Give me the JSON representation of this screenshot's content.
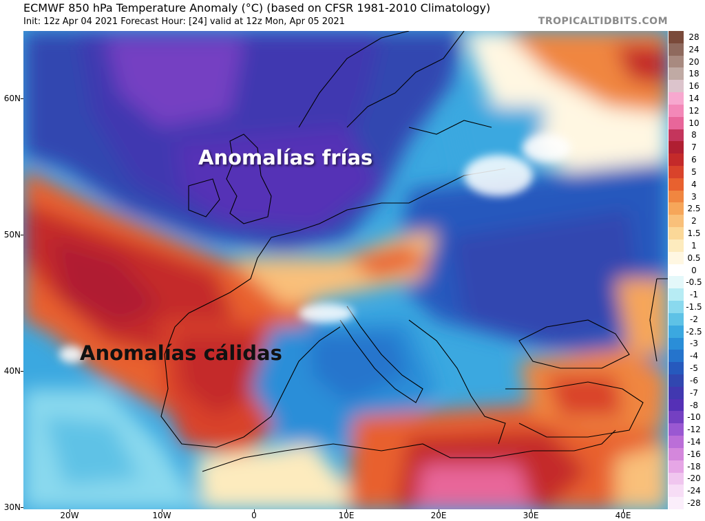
{
  "header": {
    "title": "ECMWF 850 hPa Temperature Anomaly (°C) (based on CFSR 1981-2010 Climatology)",
    "subtitle": "Init: 12z Apr 04 2021   Forecast Hour: [24]   valid at 12z Mon, Apr 05 2021",
    "brand": "TROPICALTIDBITS.COM"
  },
  "map": {
    "annotations": {
      "cold": "Anomalías frías",
      "warm": "Anomalías cálidas"
    },
    "lat_labels": [
      "60N",
      "50N",
      "40N",
      "30N"
    ],
    "lon_labels": [
      "20W",
      "10W",
      "0",
      "10E",
      "20E",
      "30E",
      "40E"
    ]
  },
  "colorbar": {
    "levels": [
      {
        "label": "28",
        "color": "#7a4a3a"
      },
      {
        "label": "24",
        "color": "#8f6a5e"
      },
      {
        "label": "20",
        "color": "#a88a80"
      },
      {
        "label": "18",
        "color": "#c0aaa4"
      },
      {
        "label": "16",
        "color": "#dcc4cc"
      },
      {
        "label": "14",
        "color": "#f7a8cf"
      },
      {
        "label": "12",
        "color": "#f388b8"
      },
      {
        "label": "10",
        "color": "#e8669a"
      },
      {
        "label": "8",
        "color": "#c4355c"
      },
      {
        "label": "7",
        "color": "#b01f32"
      },
      {
        "label": "6",
        "color": "#c42a2a"
      },
      {
        "label": "5",
        "color": "#d9432b"
      },
      {
        "label": "4",
        "color": "#e8612f"
      },
      {
        "label": "3",
        "color": "#f08640"
      },
      {
        "label": "2.5",
        "color": "#f6a65a"
      },
      {
        "label": "2",
        "color": "#f9c07a"
      },
      {
        "label": "1.5",
        "color": "#fbd898"
      },
      {
        "label": "1",
        "color": "#fdebbe"
      },
      {
        "label": "0.5",
        "color": "#fff7e2"
      },
      {
        "label": "0",
        "color": "#ffffff"
      },
      {
        "label": "-0.5",
        "color": "#e4f8fa"
      },
      {
        "label": "-1",
        "color": "#b7ecf4"
      },
      {
        "label": "-1.5",
        "color": "#8ad9ee"
      },
      {
        "label": "-2",
        "color": "#5ec2e6"
      },
      {
        "label": "-2.5",
        "color": "#3ba8e0"
      },
      {
        "label": "-3",
        "color": "#2a8ed8"
      },
      {
        "label": "-4",
        "color": "#2574cc"
      },
      {
        "label": "-5",
        "color": "#2659bd"
      },
      {
        "label": "-6",
        "color": "#3147b0"
      },
      {
        "label": "-7",
        "color": "#4138b0"
      },
      {
        "label": "-8",
        "color": "#5530b6"
      },
      {
        "label": "-10",
        "color": "#7440c2"
      },
      {
        "label": "-12",
        "color": "#9a58d2"
      },
      {
        "label": "-14",
        "color": "#bb6ed8"
      },
      {
        "label": "-16",
        "color": "#d487dc"
      },
      {
        "label": "-18",
        "color": "#e6a6e6"
      },
      {
        "label": "-20",
        "color": "#f0c6ef"
      },
      {
        "label": "-24",
        "color": "#f7ddf6"
      },
      {
        "label": "-28",
        "color": "#fbeefb"
      }
    ]
  }
}
